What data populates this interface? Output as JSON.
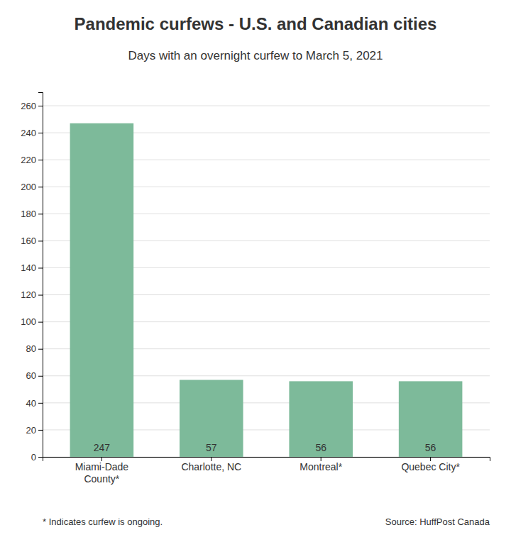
{
  "chart_data": {
    "type": "bar",
    "title": "Pandemic curfews - U.S. and Canadian cities",
    "subtitle": "Days with an overnight curfew to March 5, 2021",
    "categories": [
      "Miami-Dade\nCounty*",
      "Charlotte, NC",
      "Montreal*",
      "Quebec City*"
    ],
    "values": [
      247,
      57,
      56,
      56
    ],
    "color": "#7dba9a",
    "ylim": [
      0,
      270
    ],
    "yticks": [
      0,
      20,
      40,
      60,
      80,
      100,
      120,
      140,
      160,
      180,
      200,
      220,
      240,
      260
    ],
    "grid": true,
    "data_labels": true,
    "annotations": [
      "* Indicates curfew is ongoing.",
      "Source: HuffPost Canada"
    ]
  }
}
